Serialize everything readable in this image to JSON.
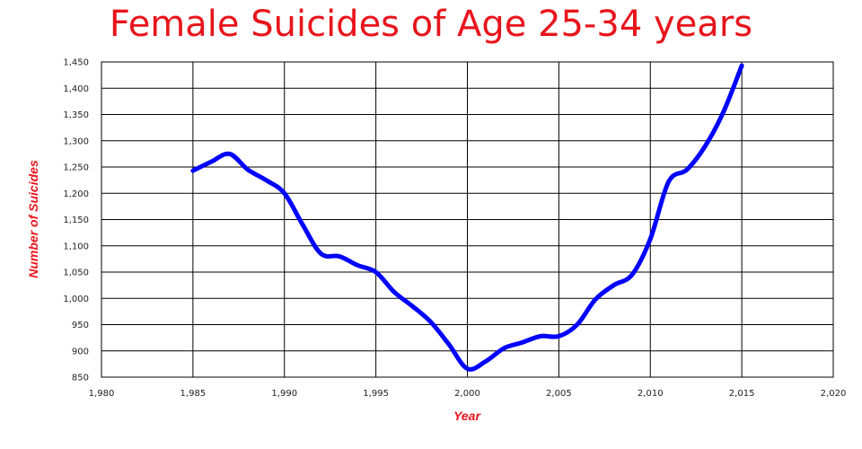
{
  "chart_data": {
    "type": "line",
    "title": "Female Suicides of Age 25-34 years",
    "xlabel": "Year",
    "ylabel": "Number of Suicides",
    "xlim": [
      1980,
      2020
    ],
    "ylim": [
      850,
      1450
    ],
    "x_ticks": [
      1980,
      1985,
      1990,
      1995,
      2000,
      2005,
      2010,
      2015,
      2020
    ],
    "y_ticks": [
      850,
      900,
      950,
      1000,
      1050,
      1100,
      1150,
      1200,
      1250,
      1300,
      1350,
      1400,
      1450
    ],
    "x_tick_labels": [
      "1,980",
      "1,985",
      "1,990",
      "1,995",
      "2,000",
      "2,005",
      "2,010",
      "2,015",
      "2,020"
    ],
    "y_tick_labels": [
      "850",
      "900",
      "950",
      "1,000",
      "1,050",
      "1,100",
      "1,150",
      "1,200",
      "1,250",
      "1,300",
      "1,350",
      "1,400",
      "1,450"
    ],
    "grid": true,
    "line_color": "#0000ff",
    "title_color": "#e8141b",
    "series": [
      {
        "x": [
          1985,
          1986,
          1987,
          1988,
          1989,
          1990,
          1991,
          1992,
          1993,
          1994,
          1995,
          1996,
          1997,
          1998,
          1999,
          2000,
          2001,
          2002,
          2003,
          2004,
          2005,
          2006,
          2007,
          2008,
          2009,
          2010,
          2011,
          2012,
          2013,
          2014,
          2015
        ],
        "y": [
          1243,
          1260,
          1275,
          1245,
          1225,
          1200,
          1140,
          1085,
          1080,
          1063,
          1050,
          1012,
          985,
          955,
          912,
          866,
          880,
          905,
          916,
          928,
          928,
          950,
          998,
          1025,
          1045,
          1113,
          1222,
          1245,
          1290,
          1355,
          1443
        ]
      }
    ]
  }
}
